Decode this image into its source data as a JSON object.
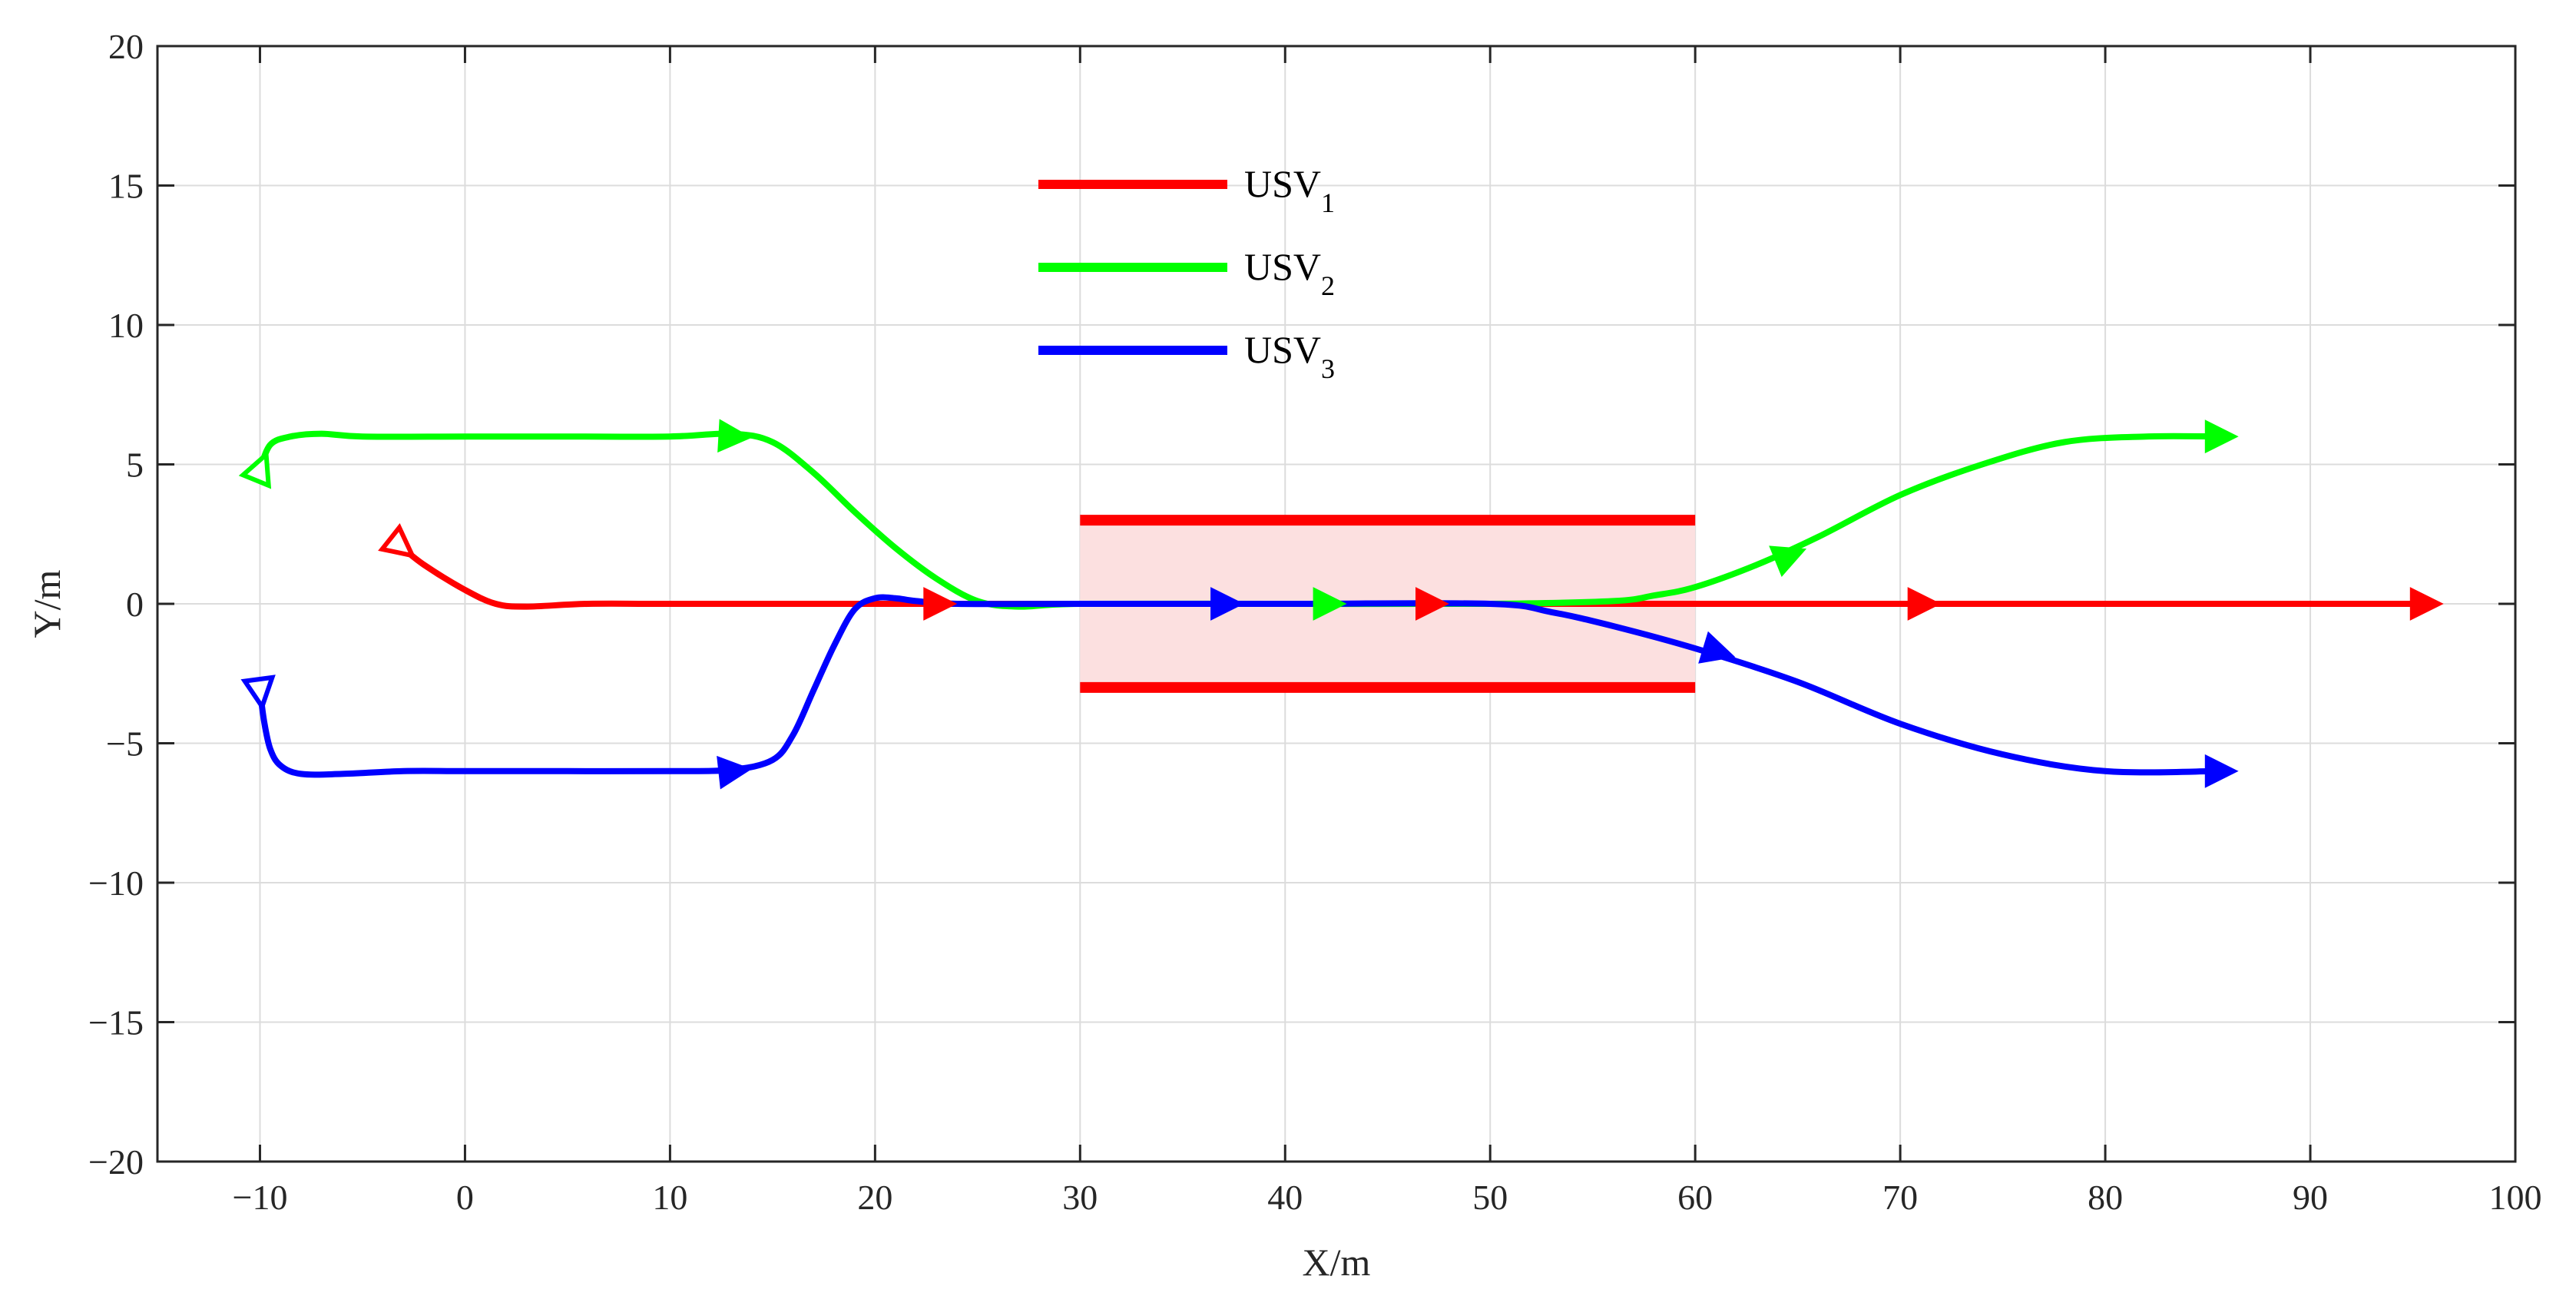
{
  "chart_data": {
    "type": "line",
    "xlabel": "X/m",
    "ylabel": "Y/m",
    "xlim": [
      -15,
      100
    ],
    "ylim": [
      -20,
      20
    ],
    "xticks": [
      -10,
      0,
      10,
      20,
      30,
      40,
      50,
      60,
      70,
      80,
      90,
      100
    ],
    "yticks": [
      -20,
      -15,
      -10,
      -5,
      0,
      5,
      10,
      15,
      20
    ],
    "xtick_labels": [
      "−10",
      "0",
      "10",
      "20",
      "30",
      "40",
      "50",
      "60",
      "70",
      "80",
      "90",
      "100"
    ],
    "ytick_labels": [
      "−20",
      "−15",
      "−10",
      "−5",
      "0",
      "5",
      "10",
      "15",
      "20"
    ],
    "grid": true,
    "legend_position": "top-center",
    "obstacle_zone": {
      "x": [
        30,
        60
      ],
      "y": [
        -3,
        3
      ],
      "fill_color": "#fce0e0",
      "edge_color": "#ff0000"
    },
    "series": [
      {
        "name_base": "USV",
        "name_sub": "1",
        "color": "#ff0000",
        "x": [
          -3.2,
          -2,
          0,
          1.5,
          3,
          6,
          10,
          20,
          30,
          40,
          50,
          60,
          70,
          80,
          90,
          95.5
        ],
        "y": [
          2.1,
          1.4,
          0.5,
          0.0,
          -0.1,
          0,
          0,
          0,
          0,
          0,
          0,
          0,
          0,
          0,
          0,
          0
        ],
        "start_marker": [
          -3.2,
          2.1
        ],
        "arrows": [
          [
            23,
            0
          ],
          [
            47,
            0
          ],
          [
            71,
            0
          ],
          [
            95.5,
            0
          ]
        ]
      },
      {
        "name_base": "USV",
        "name_sub": "2",
        "color": "#00ff00",
        "x": [
          -10,
          -9.5,
          -8.5,
          -7,
          -5,
          0,
          5,
          10,
          13,
          15,
          17,
          19,
          21,
          23,
          25,
          27,
          30,
          40,
          50,
          56,
          58,
          60,
          63,
          66,
          70,
          74,
          78,
          82,
          85.5
        ],
        "y": [
          4.8,
          5.7,
          6.0,
          6.1,
          6.0,
          6.0,
          6.0,
          6.0,
          6.1,
          5.8,
          4.7,
          3.3,
          2.0,
          0.9,
          0.1,
          -0.1,
          0,
          0,
          0,
          0.1,
          0.3,
          0.6,
          1.4,
          2.4,
          3.9,
          5.0,
          5.8,
          6.0,
          6.0
        ],
        "start_marker": [
          -10,
          4.8
        ],
        "arrows": [
          [
            13,
            6
          ],
          [
            42,
            0
          ],
          [
            64.5,
            1.7
          ],
          [
            85.5,
            6
          ]
        ]
      },
      {
        "name_base": "USV",
        "name_sub": "3",
        "color": "#0000ff",
        "x": [
          -10,
          -9.8,
          -9.5,
          -9,
          -8,
          -6,
          -3,
          0,
          5,
          10,
          13,
          15,
          16,
          17,
          18,
          19,
          20,
          21,
          22,
          24,
          30,
          40,
          50,
          53,
          56,
          60,
          65,
          70,
          75,
          80,
          85.5
        ],
        "y": [
          -3.1,
          -4.2,
          -5.2,
          -5.8,
          -6.1,
          -6.1,
          -6.0,
          -6.0,
          -6.0,
          -6.0,
          -5.95,
          -5.6,
          -4.7,
          -3.1,
          -1.5,
          -0.2,
          0.2,
          0.2,
          0.1,
          0,
          0,
          0,
          0,
          -0.3,
          -0.8,
          -1.6,
          -2.8,
          -4.3,
          -5.4,
          -6.0,
          -6.0
        ],
        "start_marker": [
          -10,
          -3.1
        ],
        "arrows": [
          [
            13,
            -6
          ],
          [
            37,
            0
          ],
          [
            61,
            -1.7
          ],
          [
            85.5,
            -6
          ]
        ]
      }
    ]
  }
}
